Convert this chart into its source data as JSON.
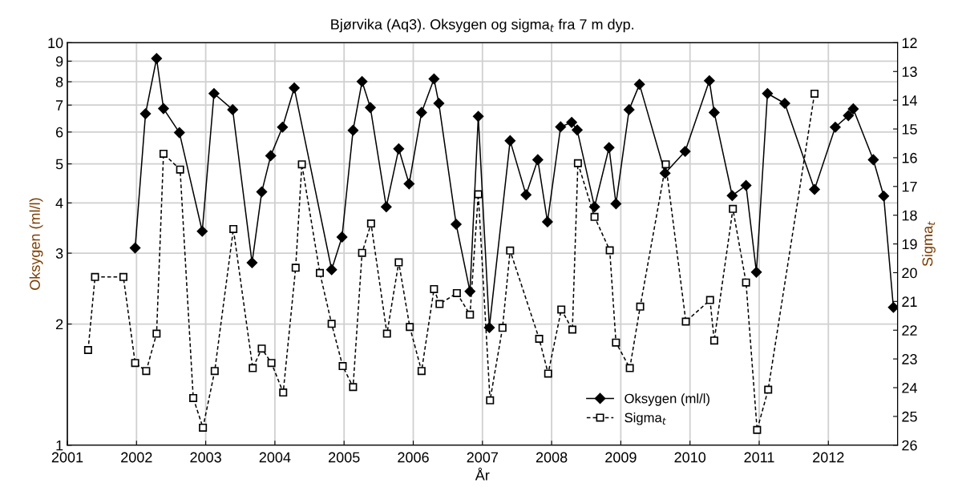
{
  "chart_data": {
    "type": "line",
    "title": "Bjørvika (Aq3). Oksygen og sigma$_{t}$ fra 7 m dyp.",
    "xlabel": "År",
    "ylabel": "Oksygen (ml/l)",
    "y2label": "Sigma$_{t}$",
    "xlim": [
      2001,
      2013
    ],
    "xticks": [
      2001,
      2002,
      2003,
      2004,
      2005,
      2006,
      2007,
      2008,
      2009,
      2010,
      2011,
      2012
    ],
    "ylim": [
      1,
      10
    ],
    "yticks": [
      1,
      2,
      3,
      4,
      5,
      6,
      7,
      8,
      9,
      10
    ],
    "log": "y",
    "y2lim": [
      26,
      12
    ],
    "y2ticks": [
      12,
      13,
      14,
      15,
      16,
      17,
      18,
      19,
      20,
      21,
      22,
      23,
      24,
      25,
      26
    ],
    "grid": true,
    "legend": "bottom",
    "series": [
      {
        "name": "Oksygen (ml/l)",
        "color": "#000000",
        "marker": "diamond",
        "line_style": "solid",
        "x": [
          2001.98,
          2002.13,
          2002.29,
          2002.39,
          2002.62,
          2002.95,
          2003.12,
          2003.39,
          2003.67,
          2003.81,
          2003.94,
          2004.11,
          2004.28,
          2004.82,
          2004.97,
          2005.13,
          2005.26,
          2005.38,
          2005.61,
          2005.79,
          2005.94,
          2006.12,
          2006.3,
          2006.37,
          2006.62,
          2006.82,
          2006.94,
          2007.1,
          2007.4,
          2007.63,
          2007.8,
          2007.94,
          2008.13,
          2008.29,
          2008.37,
          2008.62,
          2008.83,
          2008.93,
          2009.12,
          2009.27,
          2009.64,
          2009.93,
          2010.28,
          2010.35,
          2010.61,
          2010.81,
          2010.96,
          2011.12,
          2011.37,
          2011.8,
          2012.1,
          2012.29,
          2012.36,
          2012.65,
          2012.8,
          2012.94
        ],
        "values": [
          3.09,
          6.66,
          9.14,
          6.86,
          5.98,
          3.4,
          7.48,
          6.82,
          2.84,
          4.26,
          5.24,
          6.17,
          7.72,
          2.73,
          3.29,
          6.06,
          8.01,
          6.9,
          3.91,
          5.45,
          4.46,
          6.71,
          8.13,
          7.07,
          3.54,
          2.41,
          6.56,
          1.96,
          5.71,
          4.19,
          5.12,
          3.59,
          6.18,
          6.34,
          6.07,
          3.91,
          5.49,
          3.98,
          6.82,
          7.88,
          4.74,
          5.37,
          8.05,
          6.71,
          4.17,
          4.42,
          2.69,
          7.48,
          7.07,
          4.32,
          6.17,
          6.59,
          6.85,
          5.12,
          4.16,
          2.2
        ]
      },
      {
        "name": "Sigma$_{t}$",
        "color": "#000000",
        "marker": "square",
        "line_style": "dashed",
        "axis": "y2",
        "x": [
          2001.3,
          2001.4,
          2001.81,
          2001.98,
          2002.14,
          2002.29,
          2002.39,
          2002.63,
          2002.82,
          2002.96,
          2003.13,
          2003.4,
          2003.68,
          2003.81,
          2003.95,
          2004.12,
          2004.3,
          2004.39,
          2004.65,
          2004.82,
          2004.98,
          2005.13,
          2005.26,
          2005.39,
          2005.62,
          2005.79,
          2005.95,
          2006.12,
          2006.3,
          2006.38,
          2006.63,
          2006.82,
          2006.94,
          2007.11,
          2007.29,
          2007.4,
          2007.82,
          2007.95,
          2008.14,
          2008.3,
          2008.38,
          2008.62,
          2008.84,
          2008.93,
          2009.13,
          2009.28,
          2009.65,
          2009.94,
          2010.29,
          2010.35,
          2010.62,
          2010.81,
          2010.97,
          2011.13,
          2011.8
        ],
        "values": [
          22.69,
          20.15,
          20.15,
          23.14,
          23.42,
          22.12,
          15.86,
          16.41,
          24.36,
          25.39,
          23.42,
          18.48,
          23.32,
          22.64,
          23.14,
          24.17,
          19.83,
          16.23,
          20.01,
          21.78,
          23.25,
          23.98,
          19.31,
          18.29,
          22.12,
          19.64,
          21.89,
          23.42,
          20.57,
          21.09,
          20.71,
          21.46,
          17.27,
          24.44,
          21.92,
          19.23,
          22.3,
          23.51,
          21.28,
          21.98,
          16.19,
          18.06,
          19.22,
          22.43,
          23.32,
          21.18,
          16.23,
          21.7,
          20.95,
          22.36,
          17.78,
          20.34,
          25.47,
          24.07,
          13.77
        ]
      }
    ]
  }
}
